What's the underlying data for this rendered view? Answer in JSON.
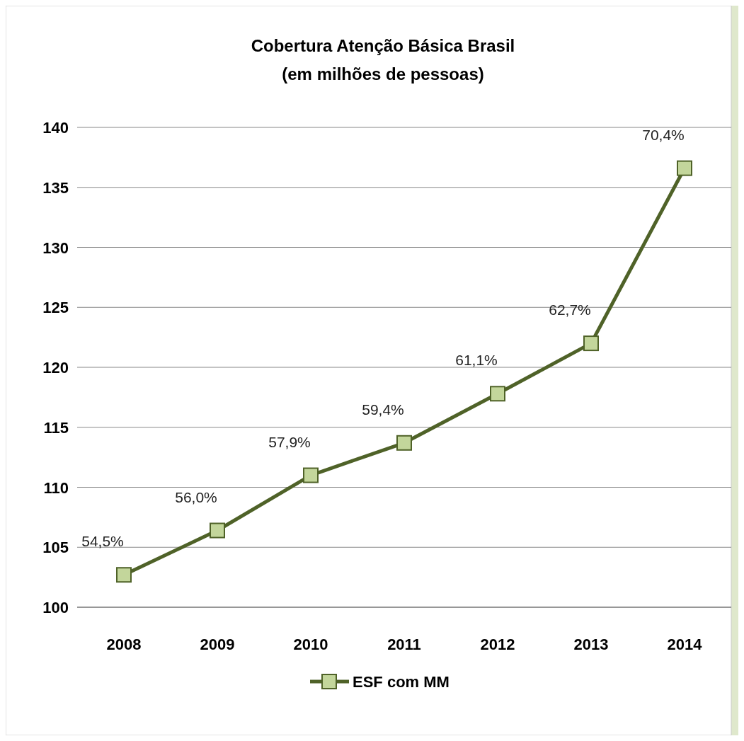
{
  "chart_data": {
    "type": "line",
    "title": "Cobertura Atenção Básica Brasil",
    "subtitle": "(em milhões de pessoas)",
    "categories": [
      "2008",
      "2009",
      "2010",
      "2011",
      "2012",
      "2013",
      "2014"
    ],
    "series": [
      {
        "name": "ESF com MM",
        "color": "#4f6228",
        "values": [
          102.7,
          106.4,
          111.0,
          113.7,
          117.8,
          122.0,
          136.6
        ]
      }
    ],
    "annotations": [
      {
        "text": "54,5%",
        "x": "2008",
        "y": 102.7
      },
      {
        "text": "56,0%",
        "x": "2009",
        "y": 106.4
      },
      {
        "text": "57,9%",
        "x": "2010",
        "y": 111.0
      },
      {
        "text": "59,4%",
        "x": "2011",
        "y": 113.7
      },
      {
        "text": "61,1%",
        "x": "2012",
        "y": 117.8
      },
      {
        "text": "62,7%",
        "x": "2013",
        "y": 122.0
      },
      {
        "text": "70,4%",
        "x": "2014",
        "y": 136.6
      }
    ],
    "ylim": [
      100,
      140
    ],
    "yticks": [
      100,
      105,
      110,
      115,
      120,
      125,
      130,
      135,
      140
    ],
    "grid": "y",
    "legend": "bottom",
    "marker": "square",
    "line_style": "solid"
  }
}
